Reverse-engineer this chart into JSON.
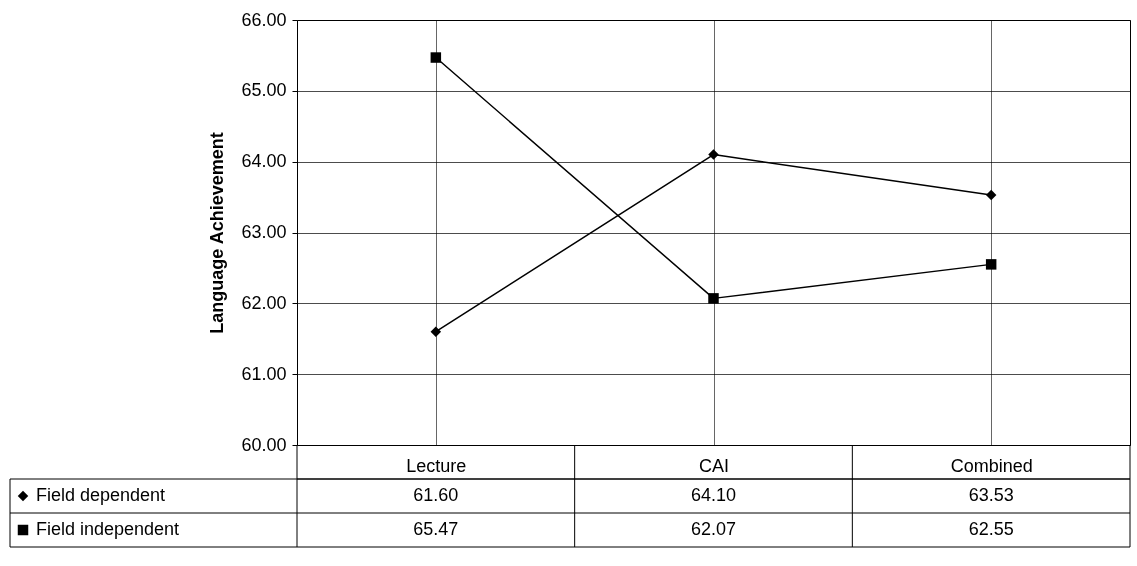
{
  "chart_data": {
    "type": "line",
    "ylabel": "Language Achievement",
    "categories": [
      "Lecture",
      "CAI",
      "Combined"
    ],
    "series": [
      {
        "name": "Field dependent",
        "color": "#000000",
        "marker": "diamond",
        "values": [
          61.6,
          64.1,
          63.53
        ],
        "value_labels": [
          "61.60",
          "64.10",
          "63.53"
        ]
      },
      {
        "name": "Field independent",
        "color": "#000000",
        "marker": "square",
        "values": [
          65.47,
          62.07,
          62.55
        ],
        "value_labels": [
          "65.47",
          "62.07",
          "62.55"
        ]
      }
    ],
    "ylim": [
      60,
      66
    ],
    "yticks": [
      {
        "value": 60,
        "label": "60.00"
      },
      {
        "value": 61,
        "label": "61.00"
      },
      {
        "value": 62,
        "label": "62.00"
      },
      {
        "value": 63,
        "label": "63.00"
      },
      {
        "value": 64,
        "label": "64.00"
      },
      {
        "value": 65,
        "label": "65.00"
      },
      {
        "value": 66,
        "label": "66.00"
      }
    ],
    "grid": true,
    "legend": "bottom left"
  }
}
